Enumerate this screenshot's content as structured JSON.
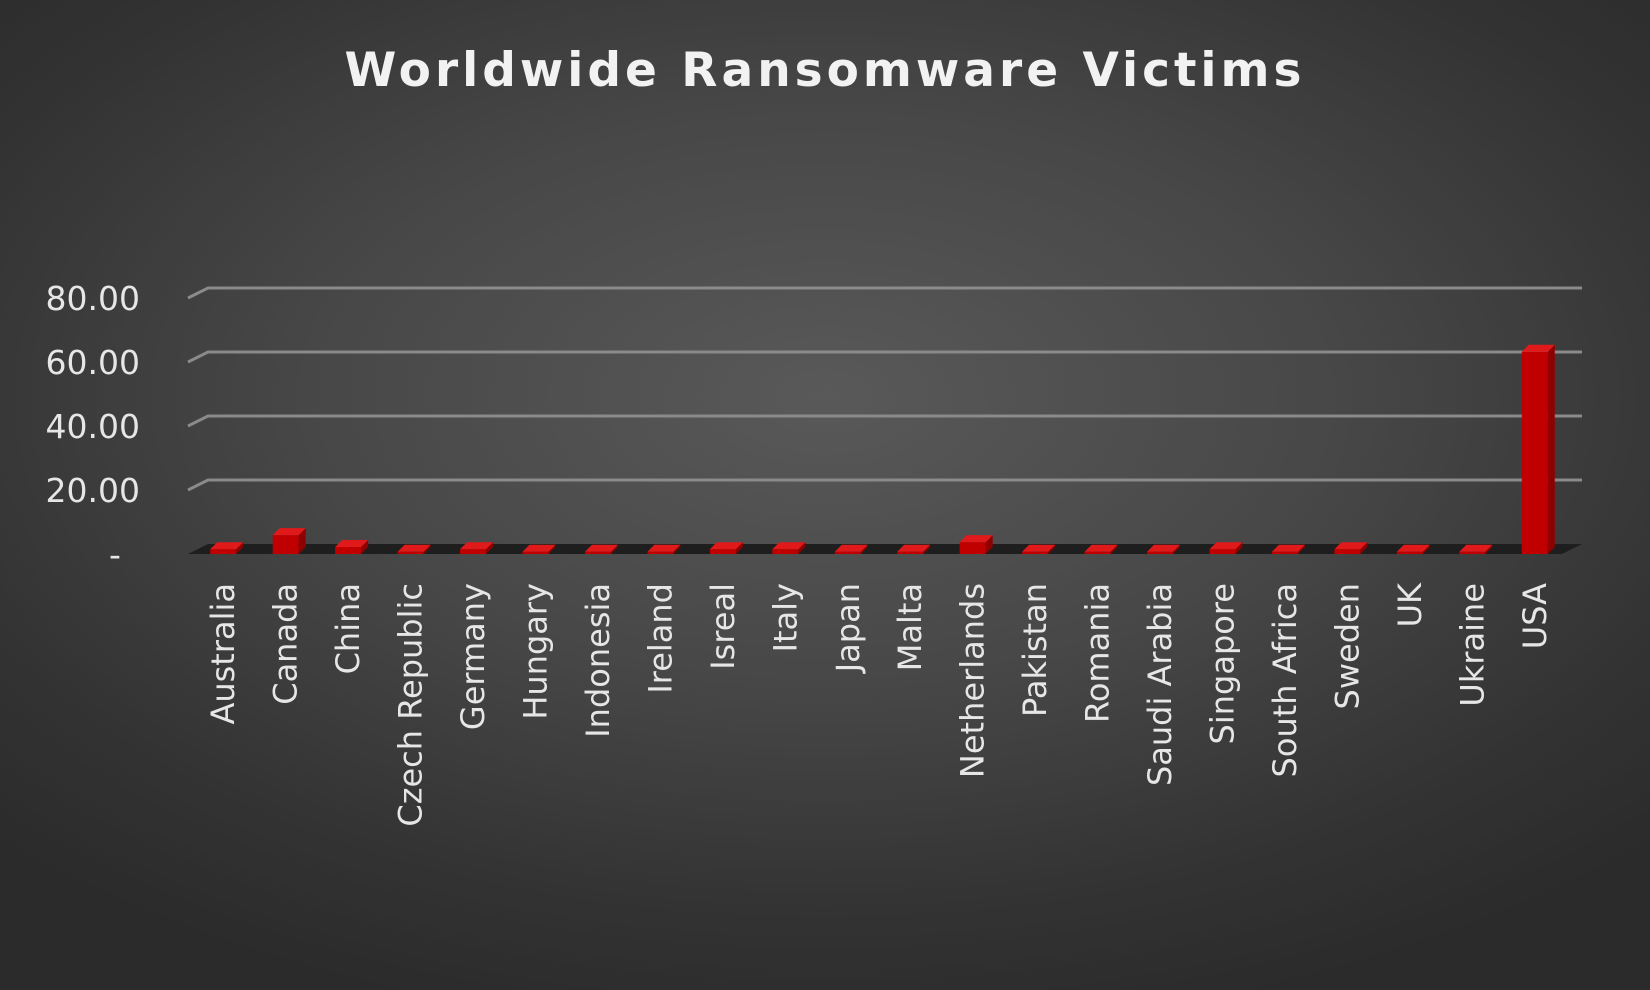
{
  "chart_data": {
    "type": "bar",
    "title": "Worldwide Ransomware Victims",
    "xlabel": "",
    "ylabel": "",
    "ylim": [
      0,
      80
    ],
    "yticks": [
      {
        "value": 0,
        "label": "-"
      },
      {
        "value": 20,
        "label": "20.00"
      },
      {
        "value": 40,
        "label": "40.00"
      },
      {
        "value": 60,
        "label": "60.00"
      },
      {
        "value": 80,
        "label": "80.00"
      }
    ],
    "grid": true,
    "legend": "none",
    "bar_color": "#c00000",
    "categories": [
      "Australia",
      "Canada",
      "China",
      "Czech Republic",
      "Germany",
      "Hungary",
      "Indonesia",
      "Ireland",
      "Isreal",
      "Italy",
      "Japan",
      "Malta",
      "Netherlands",
      "Pakistan",
      "Romania",
      "Saudi Arabia",
      "Singapore",
      "South Africa",
      "Sweden",
      "UK",
      "Ukraine",
      "USA"
    ],
    "values": [
      1.5,
      5.9,
      2.2,
      0.7,
      1.5,
      0.7,
      0.7,
      0.7,
      1.5,
      1.5,
      0.7,
      0.7,
      3.7,
      0.7,
      0.7,
      0.7,
      1.5,
      0.7,
      1.5,
      0.7,
      0.7,
      63.2
    ]
  }
}
